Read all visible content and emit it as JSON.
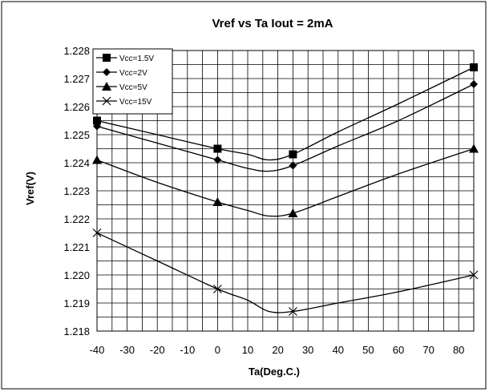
{
  "chart_data": {
    "type": "line",
    "title": "Vref vs Ta Iout = 2mA",
    "xlabel": "Ta(Deg.C.)",
    "ylabel": "Vref(V)",
    "xlim": [
      -40,
      85
    ],
    "ylim": [
      1.218,
      1.228
    ],
    "xticks": [
      "-40",
      "-30",
      "-20",
      "-10",
      "0",
      "10",
      "20",
      "30",
      "40",
      "50",
      "60",
      "70",
      "80"
    ],
    "yticks": [
      "1.228",
      "1.227",
      "1.226",
      "1.225",
      "1.224",
      "1.223",
      "1.222",
      "1.221",
      "1.220",
      "1.219",
      "1.218"
    ],
    "grid": true,
    "legend_position": "top-left",
    "series": [
      {
        "name": "Vcc=1.5V",
        "marker": "square",
        "x": [
          -40,
          0,
          25,
          85
        ],
        "y": [
          1.2255,
          1.2245,
          1.2243,
          1.2274
        ],
        "curve": [
          [
            -40,
            1.2255
          ],
          [
            -20,
            1.225
          ],
          [
            0,
            1.2245
          ],
          [
            10,
            1.2243
          ],
          [
            17,
            1.2241
          ],
          [
            25,
            1.2243
          ],
          [
            40,
            1.2251
          ],
          [
            60,
            1.2261
          ],
          [
            85,
            1.2274
          ]
        ]
      },
      {
        "name": "Vcc=2V",
        "marker": "diamond",
        "x": [
          -40,
          0,
          25,
          85
        ],
        "y": [
          1.2253,
          1.2241,
          1.2239,
          1.2268
        ],
        "curve": [
          [
            -40,
            1.2253
          ],
          [
            -20,
            1.2247
          ],
          [
            0,
            1.2241
          ],
          [
            10,
            1.2238
          ],
          [
            17,
            1.2237
          ],
          [
            25,
            1.2239
          ],
          [
            40,
            1.2246
          ],
          [
            60,
            1.2255
          ],
          [
            85,
            1.2268
          ]
        ]
      },
      {
        "name": "Vcc=5V",
        "marker": "triangle",
        "x": [
          -40,
          0,
          25,
          85
        ],
        "y": [
          1.2241,
          1.2226,
          1.2222,
          1.2245
        ],
        "curve": [
          [
            -40,
            1.2241
          ],
          [
            -20,
            1.2233
          ],
          [
            0,
            1.2226
          ],
          [
            10,
            1.2223
          ],
          [
            17,
            1.2221
          ],
          [
            25,
            1.2222
          ],
          [
            40,
            1.2228
          ],
          [
            60,
            1.2236
          ],
          [
            85,
            1.2245
          ]
        ]
      },
      {
        "name": "Vcc=15V",
        "marker": "x",
        "x": [
          -40,
          0,
          25,
          85
        ],
        "y": [
          1.2215,
          1.2195,
          1.2187,
          1.22
        ],
        "curve": [
          [
            -40,
            1.2215
          ],
          [
            -20,
            1.2205
          ],
          [
            0,
            1.2195
          ],
          [
            10,
            1.2191
          ],
          [
            17,
            1.2187
          ],
          [
            25,
            1.2187
          ],
          [
            40,
            1.219
          ],
          [
            60,
            1.2194
          ],
          [
            85,
            1.22
          ]
        ]
      }
    ],
    "colors": {
      "line": "#000000",
      "grid": "#000000",
      "background": "#ffffff"
    }
  }
}
